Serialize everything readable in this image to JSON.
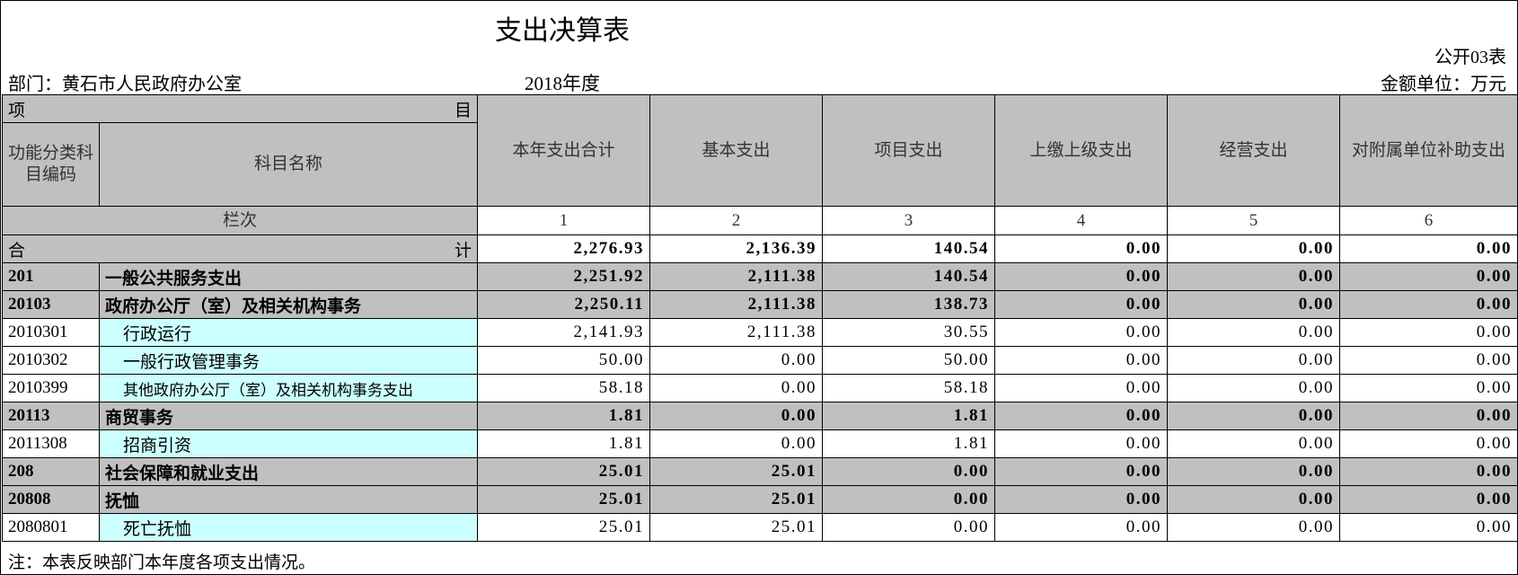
{
  "header": {
    "title": "支出决算表",
    "form_code": "公开03表",
    "department": "部门：黄石市人民政府办公室",
    "year": "2018年度",
    "unit": "金额单位：万元"
  },
  "table": {
    "item_left": "项",
    "item_right": "目",
    "code_header": "功能分类科目编码",
    "name_header": "科目名称",
    "column_index_label": "栏次",
    "columns": [
      "本年支出合计",
      "基本支出",
      "项目支出",
      "上缴上级支出",
      "经营支出",
      "对附属单位补助支出"
    ],
    "column_numbers": [
      "1",
      "2",
      "3",
      "4",
      "5",
      "6"
    ],
    "total": {
      "label_left": "合",
      "label_right": "计",
      "values": [
        "2,276.93",
        "2,136.39",
        "140.54",
        "0.00",
        "0.00",
        "0.00"
      ]
    },
    "rows": [
      {
        "code": "201",
        "name": "一般公共服务支出",
        "values": [
          "2,251.92",
          "2,111.38",
          "140.54",
          "0.00",
          "0.00",
          "0.00"
        ]
      },
      {
        "code": "20103",
        "name": "政府办公厅（室）及相关机构事务",
        "values": [
          "2,250.11",
          "2,111.38",
          "138.73",
          "0.00",
          "0.00",
          "0.00"
        ]
      },
      {
        "code": "2010301",
        "name": "行政运行",
        "values": [
          "2,141.93",
          "2,111.38",
          "30.55",
          "0.00",
          "0.00",
          "0.00"
        ]
      },
      {
        "code": "2010302",
        "name": "一般行政管理事务",
        "values": [
          "50.00",
          "0.00",
          "50.00",
          "0.00",
          "0.00",
          "0.00"
        ]
      },
      {
        "code": "2010399",
        "name": "其他政府办公厅（室）及相关机构事务支出",
        "values": [
          "58.18",
          "0.00",
          "58.18",
          "0.00",
          "0.00",
          "0.00"
        ]
      },
      {
        "code": "20113",
        "name": "商贸事务",
        "values": [
          "1.81",
          "0.00",
          "1.81",
          "0.00",
          "0.00",
          "0.00"
        ]
      },
      {
        "code": "2011308",
        "name": "招商引资",
        "values": [
          "1.81",
          "0.00",
          "1.81",
          "0.00",
          "0.00",
          "0.00"
        ]
      },
      {
        "code": "208",
        "name": "社会保障和就业支出",
        "values": [
          "25.01",
          "25.01",
          "0.00",
          "0.00",
          "0.00",
          "0.00"
        ]
      },
      {
        "code": "20808",
        "name": "抚恤",
        "values": [
          "25.01",
          "25.01",
          "0.00",
          "0.00",
          "0.00",
          "0.00"
        ]
      },
      {
        "code": "2080801",
        "name": "死亡抚恤",
        "values": [
          "25.01",
          "25.01",
          "0.00",
          "0.00",
          "0.00",
          "0.00"
        ]
      }
    ]
  },
  "note": "注：本表反映部门本年度各项支出情况。"
}
